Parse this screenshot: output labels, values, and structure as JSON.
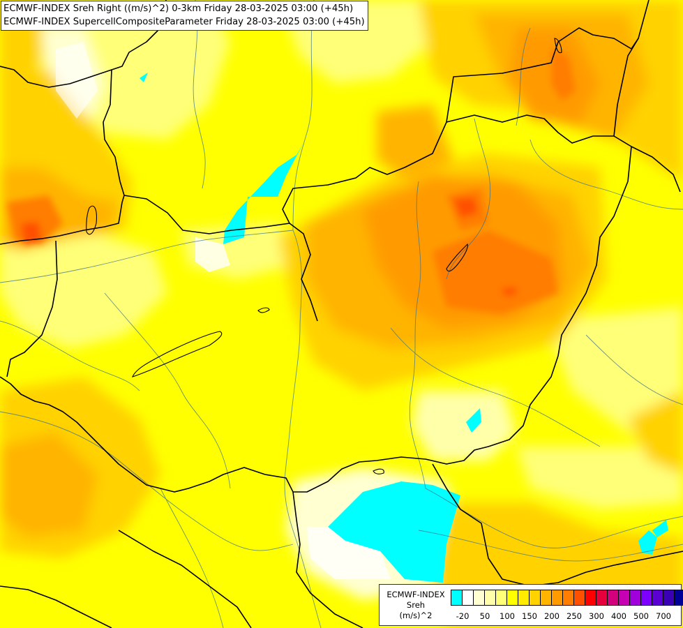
{
  "header": {
    "line1": "ECMWF-INDEX Sreh Right ((m/s)^2) 0-3km Friday 28-03-2025 03:00 (+45h)",
    "line2": "ECMWF-INDEX SupercellCompositeParameter Friday 28-03-2025 03:00 (+45h)"
  },
  "legend": {
    "line1": "ECMWF-INDEX",
    "line2": "Sreh",
    "line3": "(m/s)^2",
    "swatches": [
      "#00ffff",
      "#ffffff",
      "#ffffd2",
      "#ffffaa",
      "#ffff78",
      "#ffff00",
      "#ffeb00",
      "#ffd200",
      "#ffb400",
      "#ff9b00",
      "#ff7d00",
      "#ff5000",
      "#ff0000",
      "#e6003c",
      "#d2007d",
      "#c800b4",
      "#a000dc",
      "#7d00ff",
      "#5a00d2",
      "#3c00b4",
      "#000096"
    ],
    "ticks": [
      {
        "label": "-20",
        "index": 1
      },
      {
        "label": "50",
        "index": 3
      },
      {
        "label": "100",
        "index": 5
      },
      {
        "label": "150",
        "index": 7
      },
      {
        "label": "200",
        "index": 9
      },
      {
        "label": "250",
        "index": 11
      },
      {
        "label": "300",
        "index": 13
      },
      {
        "label": "400",
        "index": 15
      },
      {
        "label": "500",
        "index": 17
      },
      {
        "label": "700",
        "index": 19
      }
    ]
  }
}
